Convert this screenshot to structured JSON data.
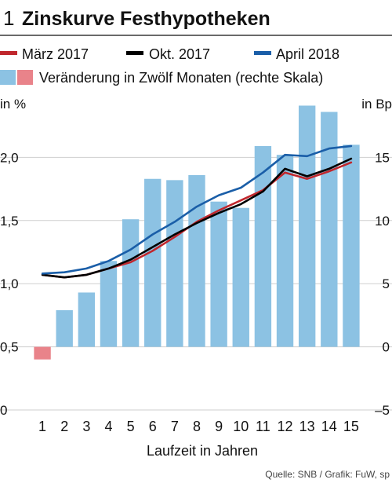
{
  "figure_number": "1",
  "title": "Zinskurve Festhypotheken",
  "source": "Quelle: SNB / Grafik: FuW, sp",
  "legend": [
    {
      "label": "März 2017",
      "color": "#c0272d",
      "kind": "line"
    },
    {
      "label": "Okt. 2017",
      "color": "#000000",
      "kind": "line"
    },
    {
      "label": "April 2018",
      "color": "#1a5ea8",
      "kind": "line"
    },
    {
      "label": "Veränderung in Zwölf Monaten (rechte Skala)",
      "kind": "bars",
      "colors": [
        "#8cc2e3",
        "#e9838a"
      ]
    }
  ],
  "chart_data": {
    "type": "bar+line",
    "xlabel": "Laufzeit in Jahren",
    "y_left_label": "in %",
    "y_right_label": "in Bp",
    "x": [
      1,
      2,
      3,
      4,
      5,
      6,
      7,
      8,
      9,
      10,
      11,
      12,
      13,
      14,
      15
    ],
    "y_left_lim": [
      0,
      2.5
    ],
    "y_left_ticks": [
      0,
      0.5,
      1.0,
      1.5,
      2.0
    ],
    "y_left_tick_labels": [
      "0",
      "0,5",
      "1,0",
      "1,5",
      "2,0"
    ],
    "y_right_lim": [
      -5,
      20
    ],
    "y_right_ticks": [
      -5,
      0,
      5,
      10,
      15
    ],
    "y_right_tick_labels": [
      "–5",
      "0",
      "5",
      "10",
      "15"
    ],
    "grid": "horizontal",
    "bars": {
      "name": "Veränderung in Zwölf Monaten (rechte Skala)",
      "axis": "right",
      "positive_color": "#8cc2e3",
      "negative_color": "#e9838a",
      "values": [
        -1.0,
        2.9,
        4.3,
        6.8,
        10.1,
        13.3,
        13.2,
        13.6,
        11.5,
        11.0,
        15.9,
        15.2,
        19.1,
        18.6,
        16.0
      ]
    },
    "series": [
      {
        "name": "März 2017",
        "color": "#c0272d",
        "values": [
          1.07,
          1.05,
          1.07,
          1.12,
          1.17,
          1.26,
          1.37,
          1.49,
          1.58,
          1.66,
          1.74,
          1.88,
          1.83,
          1.89,
          1.96
        ]
      },
      {
        "name": "Okt. 2017",
        "color": "#000000",
        "values": [
          1.07,
          1.05,
          1.07,
          1.12,
          1.19,
          1.29,
          1.39,
          1.48,
          1.56,
          1.63,
          1.73,
          1.91,
          1.85,
          1.91,
          1.99
        ]
      },
      {
        "name": "April 2018",
        "color": "#1a5ea8",
        "values": [
          1.08,
          1.09,
          1.12,
          1.18,
          1.27,
          1.39,
          1.49,
          1.61,
          1.7,
          1.76,
          1.88,
          2.02,
          2.01,
          2.07,
          2.09
        ]
      }
    ]
  }
}
